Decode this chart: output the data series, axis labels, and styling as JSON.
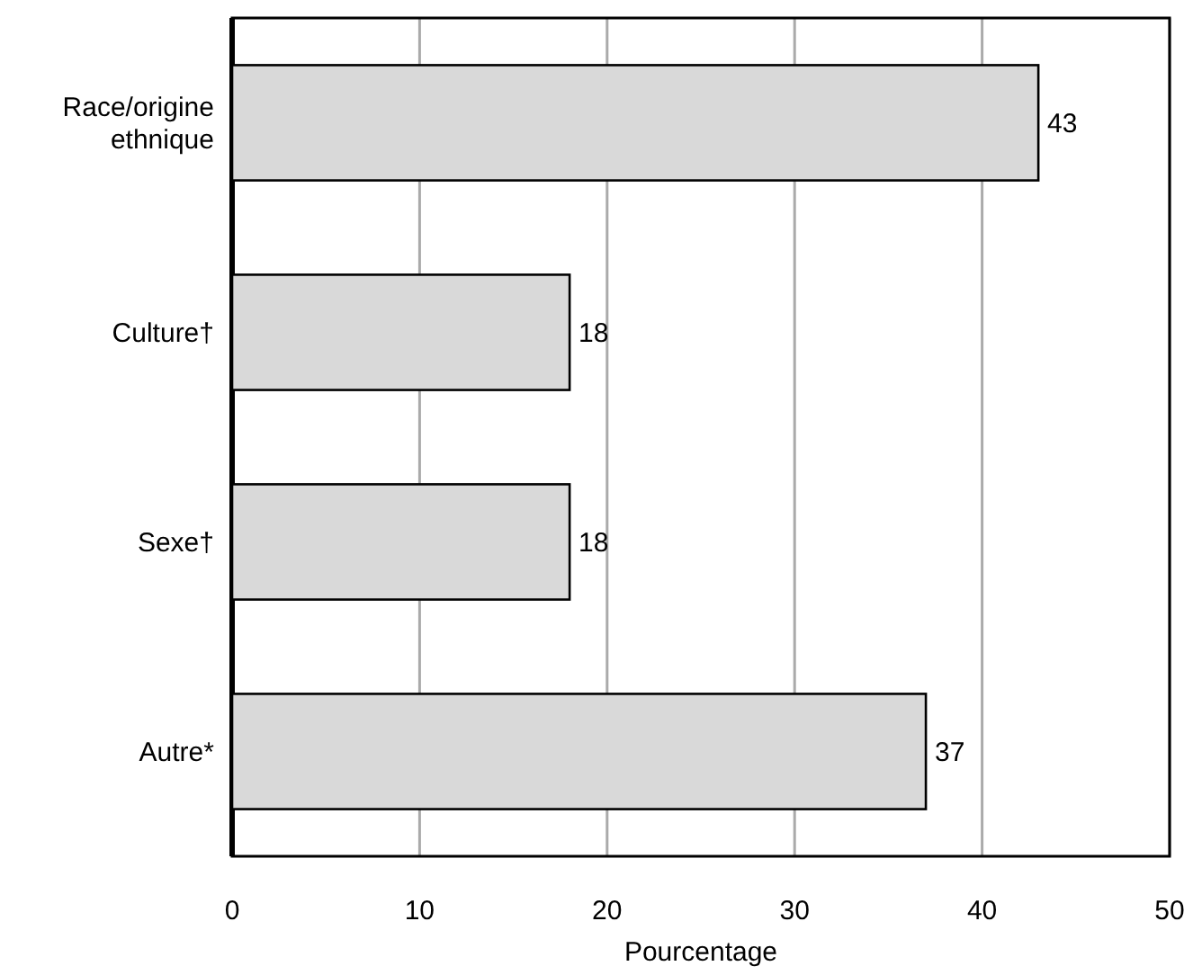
{
  "chart_data": {
    "type": "bar",
    "orientation": "horizontal",
    "xlabel": "Pourcentage",
    "categories": [
      "Race/origine ethnique",
      "Culture†",
      "Sexe†",
      "Autre*"
    ],
    "values": [
      43,
      18,
      18,
      37
    ],
    "color": "#d9d9d9",
    "xlim": [
      0,
      50
    ],
    "xticks": [
      0,
      10,
      20,
      30,
      40,
      50
    ],
    "grid": "x",
    "data_labels": true
  }
}
